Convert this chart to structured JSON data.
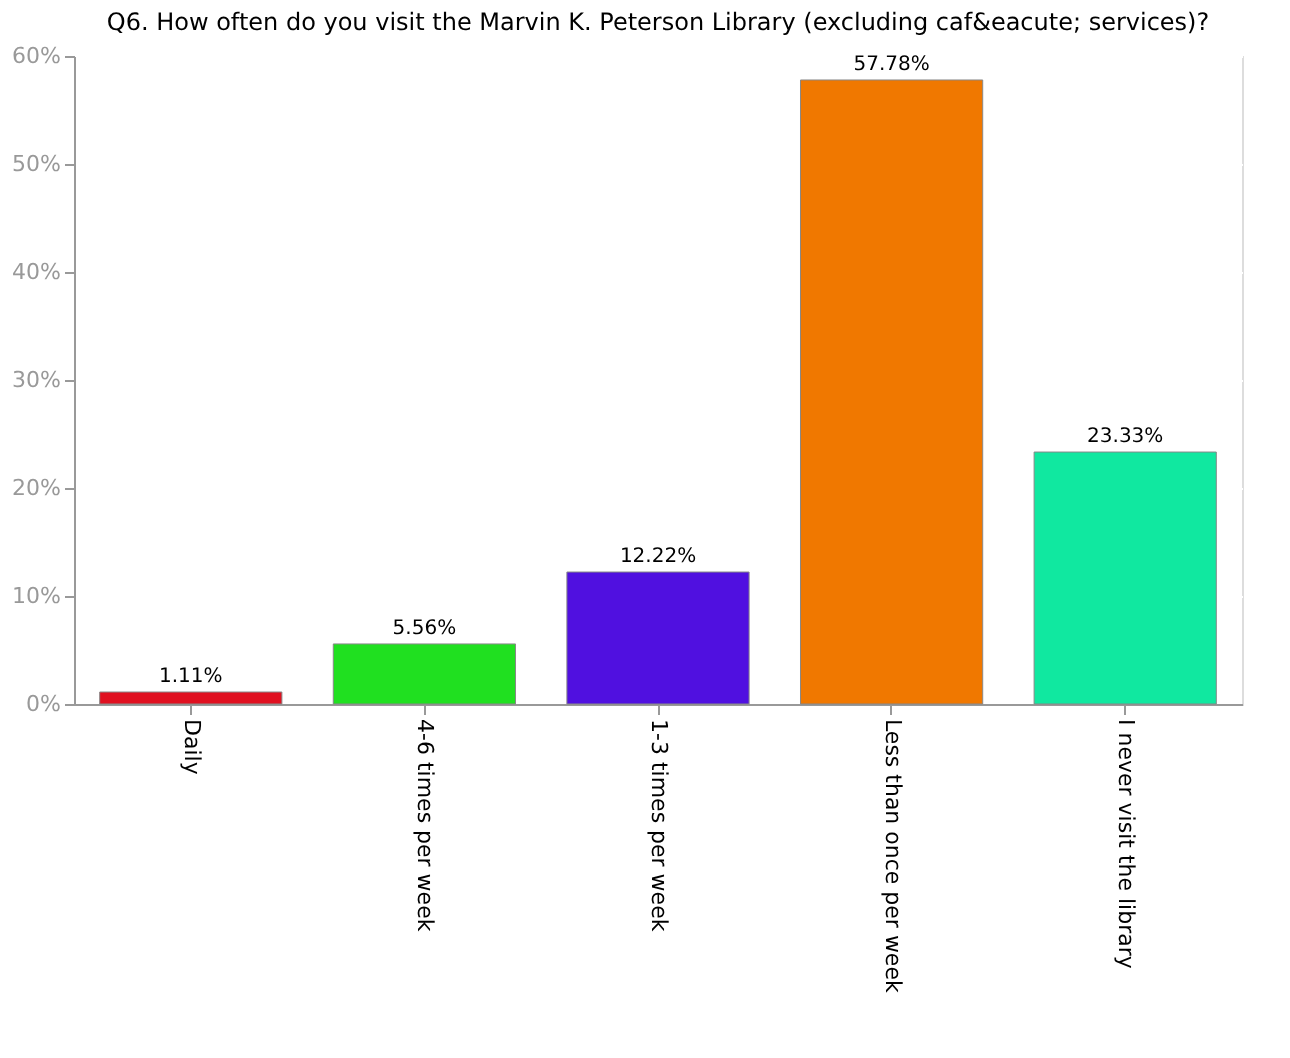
{
  "chart_data": {
    "type": "bar",
    "title": "Q6. How often do you visit the Marvin K. Peterson Library (excluding caf&eacute; services)?",
    "categories": [
      "Daily",
      "4-6 times per week",
      "1-3 times per week",
      "Less than once per week",
      "I never visit the library"
    ],
    "values": [
      1.11,
      5.56,
      12.22,
      57.78,
      23.33
    ],
    "colors": [
      "#e01020",
      "#20e020",
      "#5010e0",
      "#f07800",
      "#10e8a0"
    ],
    "value_labels": [
      "1.11%",
      "5.56%",
      "12.22%",
      "57.78%",
      "23.33%"
    ],
    "ylim": [
      0,
      60
    ],
    "yticks": [
      {
        "value": 0,
        "label": "0%"
      },
      {
        "value": 10,
        "label": "10%"
      },
      {
        "value": 20,
        "label": "20%"
      },
      {
        "value": 30,
        "label": "30%"
      },
      {
        "value": 40,
        "label": "40%"
      },
      {
        "value": 50,
        "label": "50%"
      },
      {
        "value": 60,
        "label": "60%"
      }
    ],
    "grid": "y",
    "legend": false
  }
}
